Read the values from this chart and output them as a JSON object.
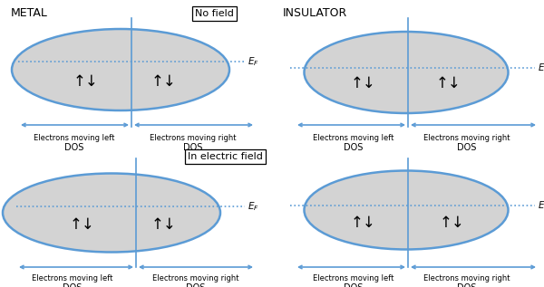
{
  "bg_color": "#ffffff",
  "ellipse_fill": "#d3d3d3",
  "ellipse_edge": "#5b9bd5",
  "dashed_color": "#5b9bd5",
  "arrow_color": "#5b9bd5",
  "text_color": "#000000",
  "title_metal": "METAL",
  "title_insulator": "INSULATOR",
  "label_no_field": "No field",
  "label_in_field": "In electric field",
  "label_electrons_left": "Electrons moving left",
  "label_electrons_right": "Electrons moving right",
  "label_dos": "DOS",
  "spin_symbol": "⇕"
}
